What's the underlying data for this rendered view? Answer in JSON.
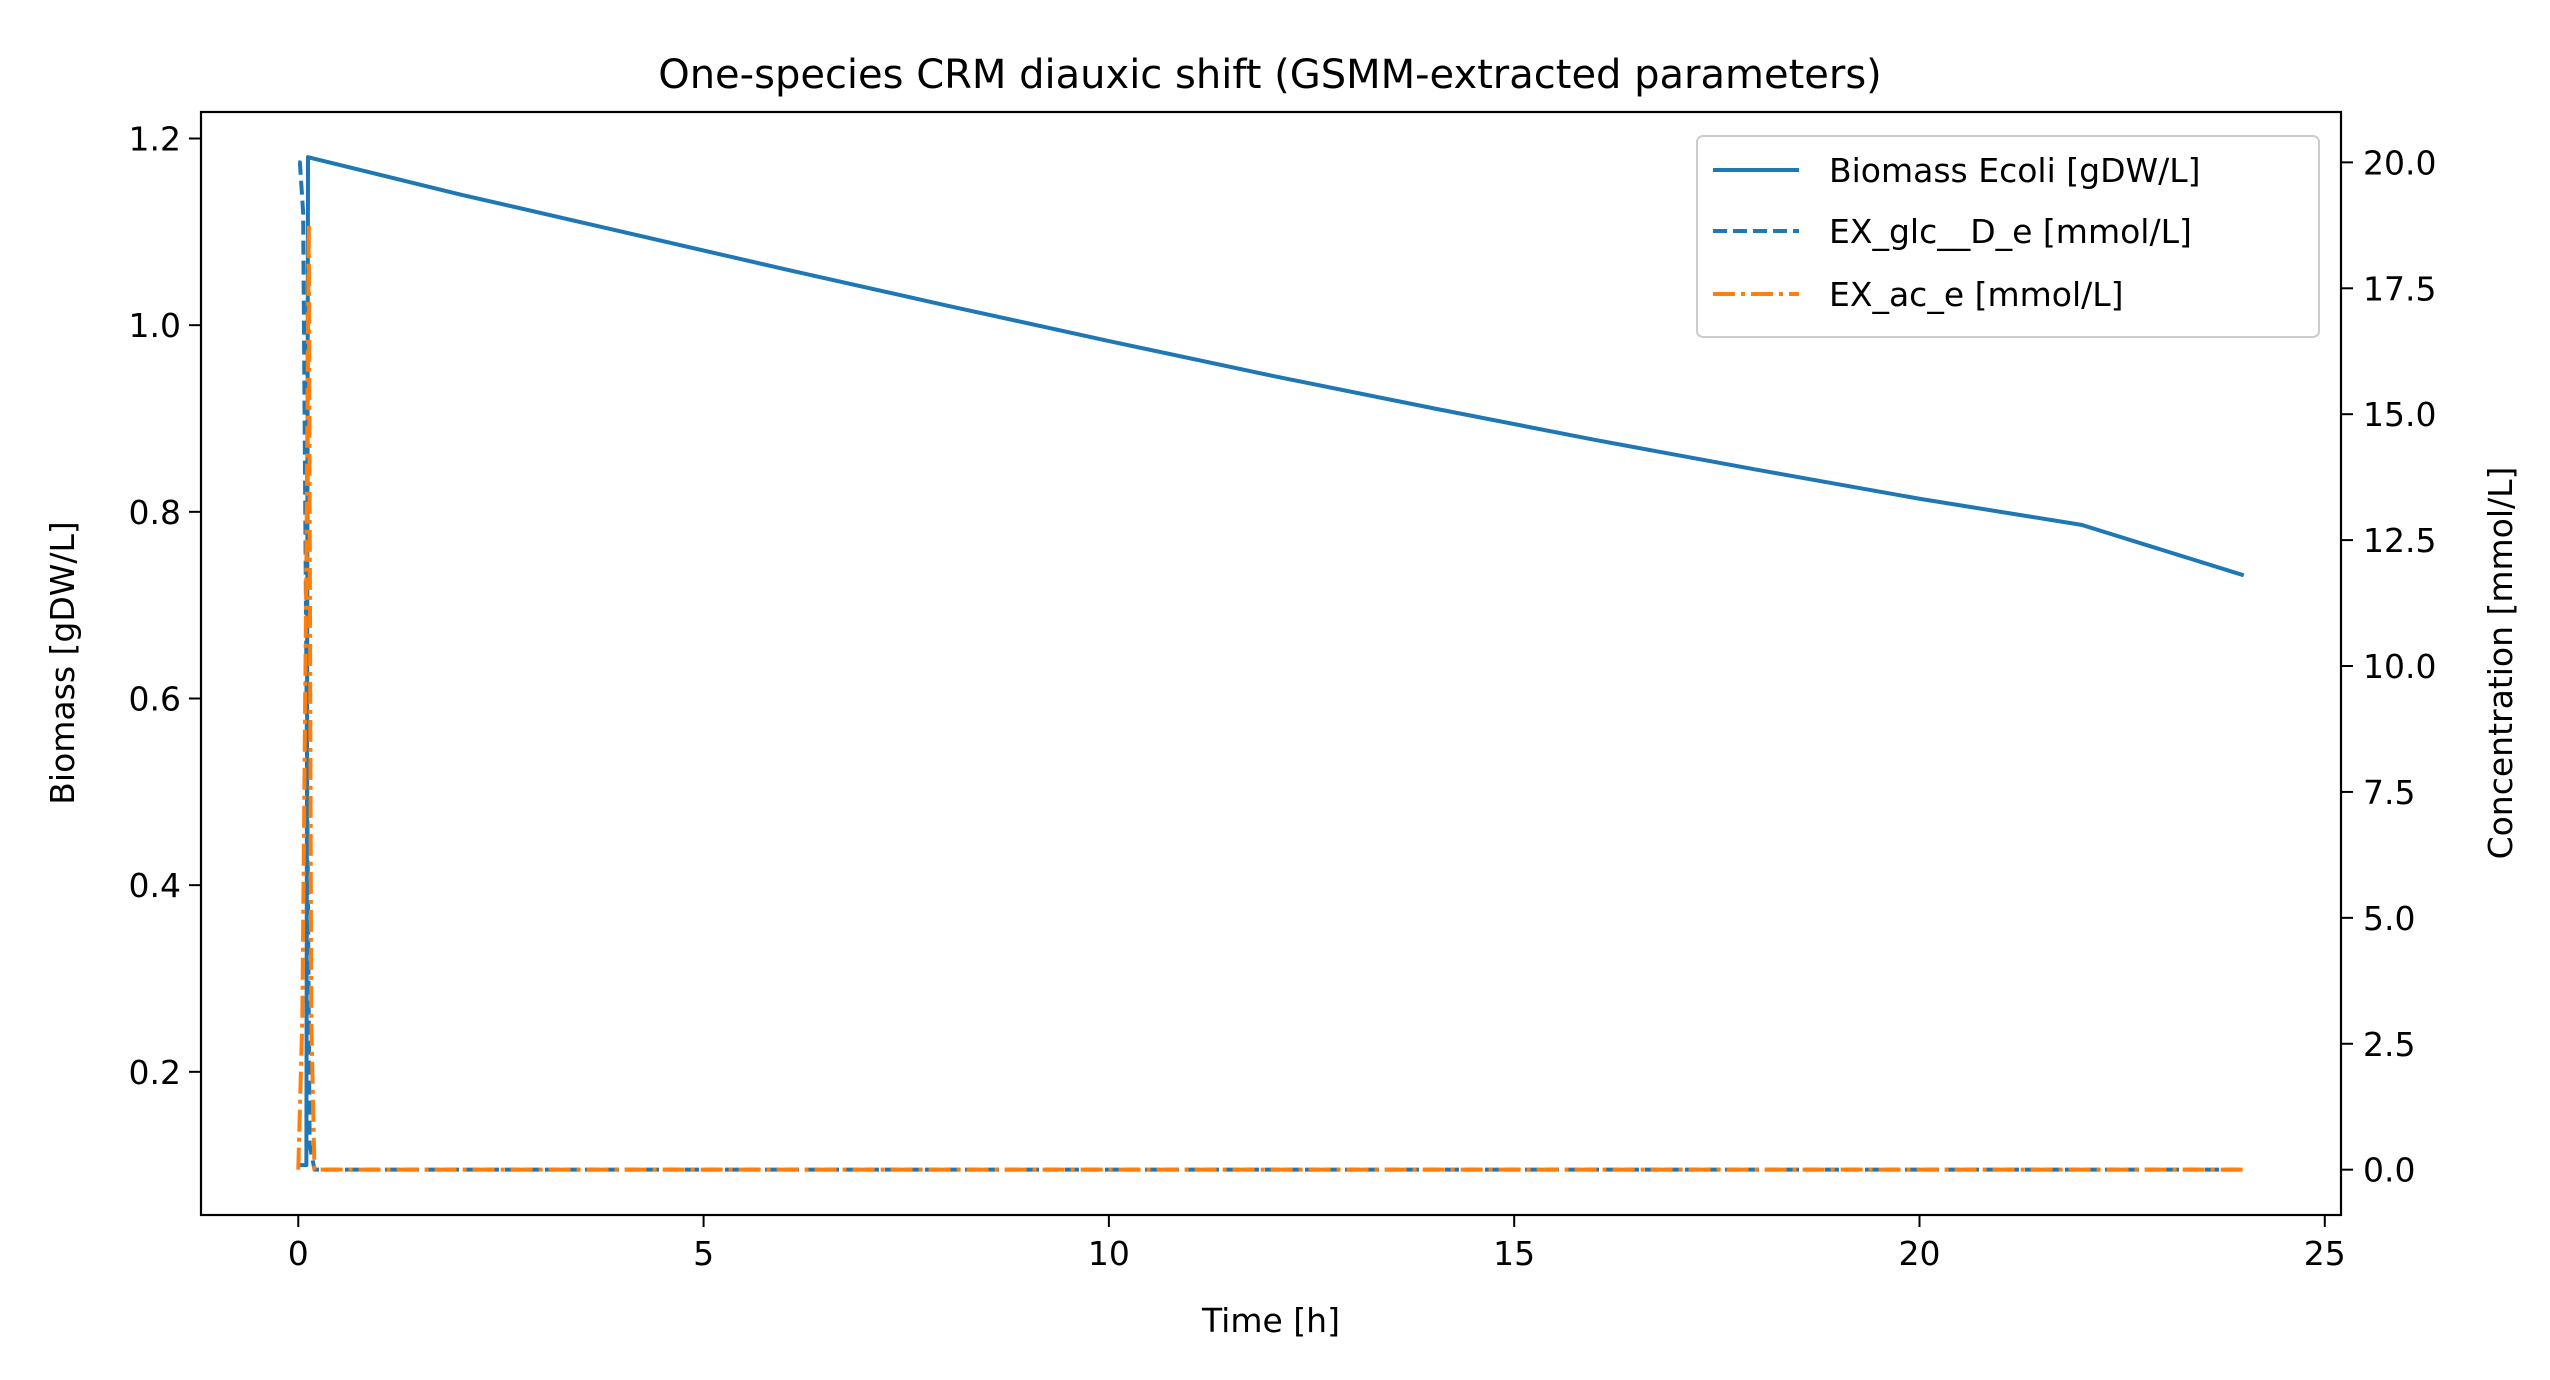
{
  "chart_data": {
    "type": "line",
    "title": "One-species CRM diauxic shift (GSMM-extracted parameters)",
    "xlabel": "Time [h]",
    "ylabel_left": "Biomass [gDW/L]",
    "ylabel_right": "Concentration [mmol/L]",
    "xlim": [
      -1.2,
      25.2
    ],
    "ylim_left": [
      0.0466,
      1.2284
    ],
    "ylim_right": [
      -0.9,
      21.0
    ],
    "x_ticks": [
      0,
      5,
      10,
      15,
      20,
      25
    ],
    "x_tick_labels": [
      "0",
      "5",
      "10",
      "15",
      "20",
      "25"
    ],
    "y_left_ticks": [
      0.2,
      0.4,
      0.6,
      0.8,
      1.0,
      1.2
    ],
    "y_left_tick_labels": [
      "0.2",
      "0.4",
      "0.6",
      "0.8",
      "1.0",
      "1.2"
    ],
    "y_right_ticks": [
      0.0,
      2.5,
      5.0,
      7.5,
      10.0,
      12.5,
      15.0,
      17.5,
      20.0
    ],
    "y_right_tick_labels": [
      "0.0",
      "2.5",
      "5.0",
      "7.5",
      "10.0",
      "12.5",
      "15.0",
      "17.5",
      "20.0"
    ],
    "grid": false,
    "legend_position": "top-right",
    "series": [
      {
        "name": "Biomass Ecoli [gDW/L]",
        "axis": "left",
        "style": "solid",
        "color": "#1f77b4",
        "x": [
          0,
          0.1,
          0.12,
          2,
          4,
          6,
          8,
          10,
          12,
          14,
          16,
          18,
          20,
          22,
          24
        ],
        "y": [
          0.1,
          0.1,
          1.18,
          1.14,
          1.1,
          1.06,
          1.021,
          0.983,
          0.946,
          0.911,
          0.877,
          0.845,
          0.814,
          0.786,
          0.732
        ]
      },
      {
        "name": "EX_glc__D_e [mmol/L]",
        "axis": "right",
        "style": "dashed",
        "color": "#1f77b4",
        "x": [
          0,
          0.02,
          0.06,
          0.1,
          0.14,
          0.2,
          24
        ],
        "y": [
          20.0,
          20.0,
          19.0,
          10.0,
          0.5,
          0.0,
          0.0
        ]
      },
      {
        "name": "EX_ac_e [mmol/L]",
        "axis": "right",
        "style": "dashdot",
        "color": "#ff7f0e",
        "x": [
          0,
          0.05,
          0.1,
          0.13,
          0.16,
          0.2,
          24
        ],
        "y": [
          0.0,
          3.0,
          12.0,
          18.8,
          3.0,
          0.0,
          0.0
        ]
      }
    ]
  }
}
